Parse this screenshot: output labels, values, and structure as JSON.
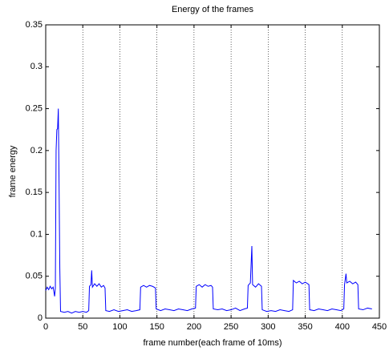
{
  "chart_data": {
    "type": "line",
    "title": "Energy of the frames",
    "xlabel": "frame number(each frame of 10ms)",
    "ylabel": "frame energy",
    "color": "#0000ff",
    "xgrid": true,
    "x": [
      0,
      2,
      4,
      6,
      8,
      10,
      12,
      13,
      14,
      15,
      16,
      17,
      18,
      19,
      20,
      25,
      30,
      35,
      40,
      45,
      50,
      55,
      58,
      59,
      61,
      62,
      63,
      66,
      69,
      72,
      75,
      78,
      80,
      81,
      86,
      92,
      98,
      104,
      110,
      116,
      122,
      127,
      128,
      132,
      136,
      140,
      144,
      148,
      149,
      155,
      161,
      167,
      173,
      179,
      185,
      191,
      197,
      202,
      203,
      207,
      211,
      215,
      219,
      223,
      225,
      226,
      232,
      238,
      244,
      250,
      256,
      262,
      268,
      272,
      273,
      276,
      278,
      279,
      283,
      287,
      291,
      292,
      298,
      304,
      310,
      316,
      322,
      328,
      333,
      334,
      338,
      342,
      346,
      350,
      355,
      356,
      362,
      368,
      374,
      380,
      386,
      392,
      398,
      402,
      403,
      405,
      406,
      410,
      414,
      418,
      421,
      422,
      428,
      434,
      440
    ],
    "values": [
      0.033,
      0.037,
      0.034,
      0.038,
      0.035,
      0.037,
      0.026,
      0.036,
      0.2,
      0.225,
      0.226,
      0.25,
      0.16,
      0.06,
      0.008,
      0.007,
      0.008,
      0.006,
      0.008,
      0.007,
      0.008,
      0.007,
      0.009,
      0.038,
      0.04,
      0.057,
      0.037,
      0.041,
      0.038,
      0.041,
      0.037,
      0.039,
      0.036,
      0.009,
      0.008,
      0.01,
      0.008,
      0.009,
      0.01,
      0.008,
      0.009,
      0.01,
      0.037,
      0.039,
      0.037,
      0.039,
      0.038,
      0.036,
      0.011,
      0.009,
      0.011,
      0.01,
      0.009,
      0.011,
      0.01,
      0.009,
      0.011,
      0.012,
      0.038,
      0.04,
      0.037,
      0.04,
      0.038,
      0.039,
      0.037,
      0.011,
      0.01,
      0.011,
      0.009,
      0.01,
      0.012,
      0.009,
      0.011,
      0.012,
      0.039,
      0.042,
      0.086,
      0.04,
      0.037,
      0.041,
      0.038,
      0.01,
      0.008,
      0.009,
      0.008,
      0.01,
      0.009,
      0.008,
      0.01,
      0.045,
      0.042,
      0.044,
      0.041,
      0.043,
      0.04,
      0.01,
      0.009,
      0.011,
      0.01,
      0.009,
      0.011,
      0.01,
      0.009,
      0.011,
      0.04,
      0.053,
      0.042,
      0.044,
      0.041,
      0.043,
      0.04,
      0.011,
      0.01,
      0.012,
      0.011
    ],
    "xlim": [
      0,
      450
    ],
    "xticks": [
      0,
      50,
      100,
      150,
      200,
      250,
      300,
      350,
      400,
      450
    ],
    "ylim": [
      0,
      0.35
    ],
    "yticks": [
      0,
      0.05,
      0.1,
      0.15,
      0.2,
      0.25,
      0.3,
      0.35
    ]
  }
}
